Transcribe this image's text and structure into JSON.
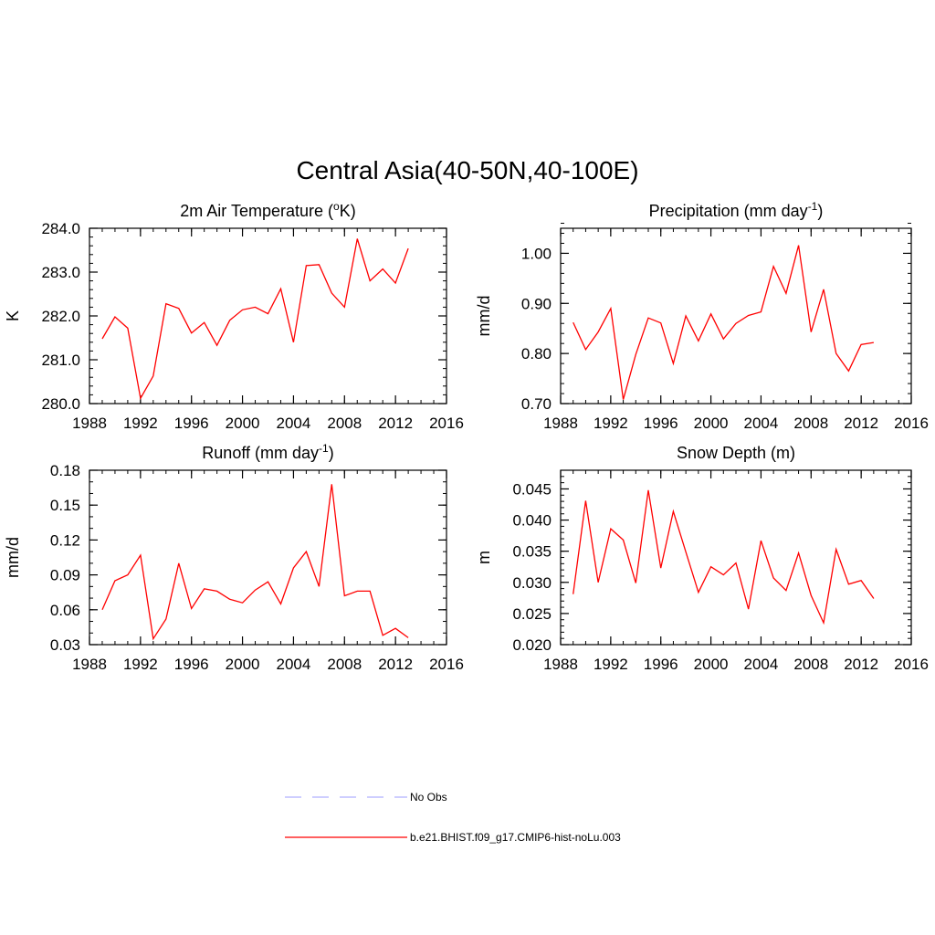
{
  "title": "Central Asia(40-50N,40-100E)",
  "chart_data": [
    {
      "type": "line",
      "title": "2m Air Temperature (",
      "title_sup": "o",
      "title_after": "K)",
      "ylabel": "K",
      "xlim": [
        1988,
        2016
      ],
      "ylim": [
        280.0,
        284.0
      ],
      "xticks": [
        1988,
        1992,
        1996,
        2000,
        2004,
        2008,
        2012,
        2016
      ],
      "yticks": [
        "280.0",
        "281.0",
        "282.0",
        "283.0",
        "284.0"
      ],
      "ytick_values": [
        280.0,
        281.0,
        282.0,
        283.0,
        284.0
      ],
      "y_minor_step": 0.2,
      "x_minor_step": 1,
      "series": [
        {
          "name": "b.e21.BHIST.f09_g17.CMIP6-hist-noLu.003",
          "color": "#ff0000",
          "x": [
            1989,
            1990,
            1991,
            1992,
            1993,
            1994,
            1995,
            1996,
            1997,
            1998,
            1999,
            2000,
            2001,
            2002,
            2003,
            2004,
            2005,
            2006,
            2007,
            2008,
            2009,
            2010,
            2011,
            2012,
            2013
          ],
          "values": [
            281.48,
            281.98,
            281.72,
            280.12,
            280.63,
            282.28,
            282.17,
            281.61,
            281.85,
            281.33,
            281.9,
            282.14,
            282.2,
            282.05,
            282.62,
            281.4,
            283.15,
            283.17,
            282.52,
            282.2,
            283.76,
            282.8,
            283.07,
            282.75,
            283.54
          ]
        }
      ]
    },
    {
      "type": "line",
      "title": "Precipitation (mm day",
      "title_sup": "-1",
      "title_after": ")",
      "ylabel": "mm/d",
      "xlim": [
        1988,
        2016
      ],
      "ylim": [
        0.7,
        1.05
      ],
      "xticks": [
        1988,
        1992,
        1996,
        2000,
        2004,
        2008,
        2012,
        2016
      ],
      "yticks": [
        "0.70",
        "0.80",
        "0.90",
        "1.00"
      ],
      "ytick_values": [
        0.7,
        0.8,
        0.9,
        1.0
      ],
      "y_minor_step": 0.02,
      "x_minor_step": 1,
      "series": [
        {
          "name": "b.e21.BHIST.f09_g17.CMIP6-hist-noLu.003",
          "color": "#ff0000",
          "x": [
            1989,
            1990,
            1991,
            1992,
            1993,
            1994,
            1995,
            1996,
            1997,
            1998,
            1999,
            2000,
            2001,
            2002,
            2003,
            2004,
            2005,
            2006,
            2007,
            2008,
            2009,
            2010,
            2011,
            2012,
            2013
          ],
          "values": [
            0.862,
            0.808,
            0.843,
            0.89,
            0.708,
            0.798,
            0.871,
            0.861,
            0.78,
            0.875,
            0.825,
            0.879,
            0.829,
            0.86,
            0.876,
            0.883,
            0.974,
            0.92,
            1.016,
            0.843,
            0.928,
            0.8,
            0.765,
            0.818,
            0.822
          ]
        }
      ]
    },
    {
      "type": "line",
      "title": "Runoff (mm day",
      "title_sup": "-1",
      "title_after": ")",
      "ylabel": "mm/d",
      "xlim": [
        1988,
        2016
      ],
      "ylim": [
        0.03,
        0.18
      ],
      "xticks": [
        1988,
        1992,
        1996,
        2000,
        2004,
        2008,
        2012,
        2016
      ],
      "yticks": [
        "0.03",
        "0.06",
        "0.09",
        "0.12",
        "0.15",
        "0.18"
      ],
      "ytick_values": [
        0.03,
        0.06,
        0.09,
        0.12,
        0.15,
        0.18
      ],
      "y_minor_step": 0.01,
      "x_minor_step": 1,
      "series": [
        {
          "name": "b.e21.BHIST.f09_g17.CMIP6-hist-noLu.003",
          "color": "#ff0000",
          "x": [
            1989,
            1990,
            1991,
            1992,
            1993,
            1994,
            1995,
            1996,
            1997,
            1998,
            1999,
            2000,
            2001,
            2002,
            2003,
            2004,
            2005,
            2006,
            2007,
            2008,
            2009,
            2010,
            2011,
            2012,
            2013
          ],
          "values": [
            0.06,
            0.085,
            0.09,
            0.107,
            0.035,
            0.052,
            0.1,
            0.061,
            0.078,
            0.076,
            0.069,
            0.066,
            0.077,
            0.084,
            0.065,
            0.096,
            0.11,
            0.08,
            0.168,
            0.072,
            0.076,
            0.076,
            0.038,
            0.044,
            0.036
          ]
        }
      ]
    },
    {
      "type": "line",
      "title": "Snow Depth (m)",
      "title_sup": "",
      "title_after": "",
      "ylabel": "m",
      "xlim": [
        1988,
        2016
      ],
      "ylim": [
        0.02,
        0.048
      ],
      "xticks": [
        1988,
        1992,
        1996,
        2000,
        2004,
        2008,
        2012,
        2016
      ],
      "yticks": [
        "0.020",
        "0.025",
        "0.030",
        "0.035",
        "0.040",
        "0.045"
      ],
      "ytick_values": [
        0.02,
        0.025,
        0.03,
        0.035,
        0.04,
        0.045
      ],
      "y_minor_step": 0.001,
      "x_minor_step": 1,
      "series": [
        {
          "name": "b.e21.BHIST.f09_g17.CMIP6-hist-noLu.003",
          "color": "#ff0000",
          "x": [
            1989,
            1990,
            1991,
            1992,
            1993,
            1994,
            1995,
            1996,
            1997,
            1998,
            1999,
            2000,
            2001,
            2002,
            2003,
            2004,
            2005,
            2006,
            2007,
            2008,
            2009,
            2010,
            2011,
            2012,
            2013
          ],
          "values": [
            0.0281,
            0.0431,
            0.03,
            0.0386,
            0.0368,
            0.0299,
            0.0448,
            0.0323,
            0.0414,
            0.0349,
            0.0284,
            0.0325,
            0.0312,
            0.0331,
            0.0257,
            0.0367,
            0.0307,
            0.0287,
            0.0347,
            0.0279,
            0.0235,
            0.0353,
            0.0297,
            0.0303,
            0.0274
          ]
        }
      ]
    }
  ],
  "legend": {
    "placement": "bottom",
    "entries": [
      {
        "label": "No Obs",
        "color": "#b0b0ff",
        "style": "dashed"
      },
      {
        "label": "b.e21.BHIST.f09_g17.CMIP6-hist-noLu.003",
        "color": "#ff0000",
        "style": "solid"
      }
    ]
  }
}
